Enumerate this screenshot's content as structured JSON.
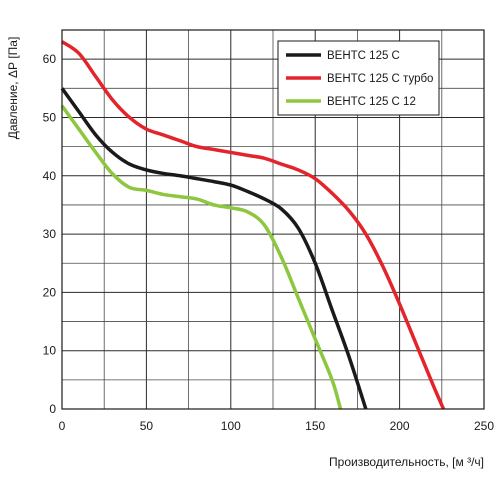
{
  "chart_data": {
    "type": "line",
    "xlabel": "Производительность, [м ³/ч]",
    "ylabel": "Давление, ΔР [Па]",
    "xlim": [
      0,
      250
    ],
    "ylim": [
      0,
      65
    ],
    "xticks": [
      0,
      50,
      100,
      150,
      200,
      250
    ],
    "yticks": [
      0,
      10,
      20,
      30,
      40,
      50,
      60
    ],
    "x_minor_step": 25,
    "y_minor_step": 5,
    "grid": true,
    "legend_position": "top-right",
    "series": [
      {
        "name": "ВЕНТС 125 С",
        "color": "#1a1a1a",
        "points": [
          [
            0,
            55
          ],
          [
            10,
            51
          ],
          [
            20,
            47
          ],
          [
            30,
            44
          ],
          [
            40,
            42
          ],
          [
            50,
            41
          ],
          [
            60,
            40.4
          ],
          [
            70,
            40
          ],
          [
            80,
            39.5
          ],
          [
            90,
            39
          ],
          [
            100,
            38.4
          ],
          [
            110,
            37.3
          ],
          [
            120,
            36
          ],
          [
            130,
            34.3
          ],
          [
            140,
            31
          ],
          [
            150,
            25
          ],
          [
            160,
            17
          ],
          [
            170,
            9
          ],
          [
            180,
            0
          ]
        ]
      },
      {
        "name": "ВЕНТС 125 С турбо",
        "color": "#e3242b",
        "points": [
          [
            0,
            63
          ],
          [
            10,
            61
          ],
          [
            20,
            57
          ],
          [
            30,
            53
          ],
          [
            40,
            50
          ],
          [
            50,
            48
          ],
          [
            60,
            47
          ],
          [
            70,
            46
          ],
          [
            80,
            45
          ],
          [
            90,
            44.5
          ],
          [
            100,
            44
          ],
          [
            110,
            43.5
          ],
          [
            120,
            43
          ],
          [
            130,
            42
          ],
          [
            140,
            41
          ],
          [
            150,
            39.5
          ],
          [
            160,
            37
          ],
          [
            170,
            34
          ],
          [
            180,
            30
          ],
          [
            190,
            24.5
          ],
          [
            200,
            18
          ],
          [
            210,
            11
          ],
          [
            220,
            4
          ],
          [
            226,
            0
          ]
        ]
      },
      {
        "name": "ВЕНТС 125 С 12",
        "color": "#8dc63f",
        "points": [
          [
            0,
            52
          ],
          [
            10,
            48
          ],
          [
            20,
            44
          ],
          [
            30,
            40.3
          ],
          [
            40,
            38
          ],
          [
            50,
            37.5
          ],
          [
            60,
            36.8
          ],
          [
            70,
            36.4
          ],
          [
            80,
            36
          ],
          [
            90,
            35
          ],
          [
            100,
            34.5
          ],
          [
            110,
            33.8
          ],
          [
            120,
            31.5
          ],
          [
            130,
            26
          ],
          [
            140,
            19
          ],
          [
            150,
            12
          ],
          [
            160,
            5
          ],
          [
            165,
            0
          ]
        ]
      }
    ]
  }
}
